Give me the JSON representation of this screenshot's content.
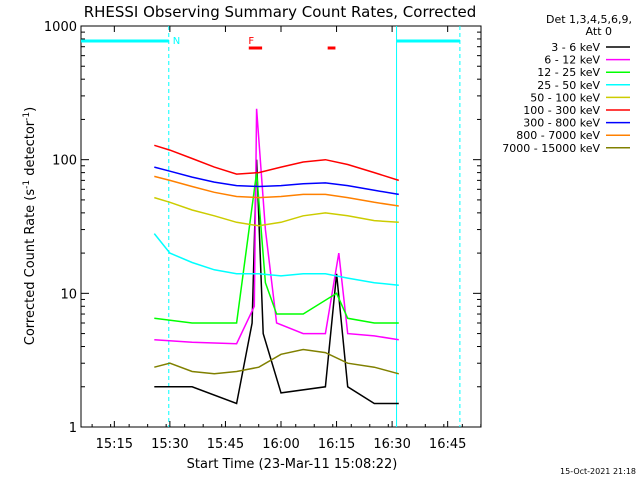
{
  "chart_data": {
    "type": "line",
    "title": "RHESSI Observing Summary Count Rates, Corrected",
    "xlabel": "Start Time (23-Mar-11 15:08:22)",
    "ylabel": "Corrected Count Rate (s⁻¹ detector⁻¹)",
    "ylabel_main": "Corrected Count Rate (s",
    "ylabel_sup1": "-1",
    "ylabel_mid": " detector",
    "ylabel_sup2": "-1",
    "ylabel_end": ")",
    "yscale": "log",
    "ylim": [
      1,
      1000
    ],
    "xlim_minutes": [
      15.1,
      16.9
    ],
    "x_ticks": [
      {
        "v": 15.25,
        "label": "15:15"
      },
      {
        "v": 15.5,
        "label": "15:30"
      },
      {
        "v": 15.75,
        "label": "15:45"
      },
      {
        "v": 16.0,
        "label": "16:00"
      },
      {
        "v": 16.25,
        "label": "16:15"
      },
      {
        "v": 16.5,
        "label": "16:30"
      },
      {
        "v": 16.75,
        "label": "16:45"
      }
    ],
    "y_ticks": [
      {
        "v": 1,
        "label": "1"
      },
      {
        "v": 10,
        "label": "10"
      },
      {
        "v": 100,
        "label": "100"
      },
      {
        "v": 1000,
        "label": "1000"
      }
    ],
    "legend_header_1": "Det 1,3,4,5,6,9,",
    "legend_header_2": "Att 0",
    "legend_placement": "right",
    "series": [
      {
        "name": "3 - 6 keV",
        "color": "#000000",
        "values": [
          [
            15.43,
            2.0
          ],
          [
            15.6,
            2.0
          ],
          [
            15.8,
            1.5
          ],
          [
            15.87,
            6.0
          ],
          [
            15.89,
            100
          ],
          [
            15.92,
            5.0
          ],
          [
            16.0,
            1.8
          ],
          [
            16.2,
            2.0
          ],
          [
            16.25,
            14.0
          ],
          [
            16.3,
            2.0
          ],
          [
            16.42,
            1.5
          ],
          [
            16.53,
            1.5
          ]
        ]
      },
      {
        "name": "6 - 12 keV",
        "color": "#ff00ff",
        "values": [
          [
            15.43,
            4.5
          ],
          [
            15.6,
            4.3
          ],
          [
            15.8,
            4.2
          ],
          [
            15.88,
            8.0
          ],
          [
            15.89,
            240
          ],
          [
            15.93,
            30
          ],
          [
            15.98,
            6.0
          ],
          [
            16.1,
            5.0
          ],
          [
            16.2,
            5.0
          ],
          [
            16.26,
            20
          ],
          [
            16.3,
            5.0
          ],
          [
            16.42,
            4.8
          ],
          [
            16.53,
            4.5
          ]
        ]
      },
      {
        "name": "12 - 25 keV",
        "color": "#00ff00",
        "values": [
          [
            15.43,
            6.5
          ],
          [
            15.6,
            6.0
          ],
          [
            15.8,
            6.0
          ],
          [
            15.89,
            80
          ],
          [
            15.93,
            12
          ],
          [
            15.98,
            7.0
          ],
          [
            16.1,
            7.0
          ],
          [
            16.25,
            10
          ],
          [
            16.3,
            6.5
          ],
          [
            16.42,
            6.0
          ],
          [
            16.53,
            6.0
          ]
        ]
      },
      {
        "name": "25 - 50 keV",
        "color": "#00ffff",
        "values": [
          [
            15.43,
            28
          ],
          [
            15.5,
            20
          ],
          [
            15.6,
            17
          ],
          [
            15.7,
            15
          ],
          [
            15.8,
            14
          ],
          [
            15.9,
            14
          ],
          [
            16.0,
            13.5
          ],
          [
            16.1,
            14
          ],
          [
            16.2,
            14
          ],
          [
            16.3,
            13
          ],
          [
            16.42,
            12
          ],
          [
            16.53,
            11.5
          ]
        ]
      },
      {
        "name": "50 - 100 keV",
        "color": "#cccc00",
        "values": [
          [
            15.43,
            52
          ],
          [
            15.5,
            48
          ],
          [
            15.6,
            42
          ],
          [
            15.7,
            38
          ],
          [
            15.8,
            34
          ],
          [
            15.9,
            32
          ],
          [
            16.0,
            34
          ],
          [
            16.1,
            38
          ],
          [
            16.2,
            40
          ],
          [
            16.3,
            38
          ],
          [
            16.42,
            35
          ],
          [
            16.53,
            34
          ]
        ]
      },
      {
        "name": "100 - 300 keV",
        "color": "#ff0000",
        "values": [
          [
            15.43,
            128
          ],
          [
            15.5,
            118
          ],
          [
            15.6,
            102
          ],
          [
            15.7,
            88
          ],
          [
            15.8,
            78
          ],
          [
            15.9,
            80
          ],
          [
            16.0,
            88
          ],
          [
            16.1,
            96
          ],
          [
            16.2,
            100
          ],
          [
            16.3,
            92
          ],
          [
            16.42,
            80
          ],
          [
            16.53,
            70
          ]
        ]
      },
      {
        "name": "300 - 800 keV",
        "color": "#0000ff",
        "values": [
          [
            15.43,
            88
          ],
          [
            15.5,
            82
          ],
          [
            15.6,
            74
          ],
          [
            15.7,
            68
          ],
          [
            15.8,
            64
          ],
          [
            15.9,
            63
          ],
          [
            16.0,
            64
          ],
          [
            16.1,
            66
          ],
          [
            16.2,
            67
          ],
          [
            16.3,
            64
          ],
          [
            16.42,
            59
          ],
          [
            16.53,
            55
          ]
        ]
      },
      {
        "name": "800 - 7000 keV",
        "color": "#ff8000",
        "values": [
          [
            15.43,
            75
          ],
          [
            15.5,
            70
          ],
          [
            15.6,
            63
          ],
          [
            15.7,
            57
          ],
          [
            15.8,
            53
          ],
          [
            15.9,
            52
          ],
          [
            16.0,
            53
          ],
          [
            16.1,
            55
          ],
          [
            16.2,
            55
          ],
          [
            16.3,
            52
          ],
          [
            16.42,
            48
          ],
          [
            16.53,
            45
          ]
        ]
      },
      {
        "name": "7000 - 15000 keV",
        "color": "#808000",
        "values": [
          [
            15.43,
            2.8
          ],
          [
            15.5,
            3.0
          ],
          [
            15.6,
            2.6
          ],
          [
            15.7,
            2.5
          ],
          [
            15.8,
            2.6
          ],
          [
            15.9,
            2.8
          ],
          [
            16.0,
            3.5
          ],
          [
            16.1,
            3.8
          ],
          [
            16.2,
            3.6
          ],
          [
            16.3,
            3.0
          ],
          [
            16.42,
            2.8
          ],
          [
            16.53,
            2.5
          ]
        ]
      }
    ],
    "annotations": [
      {
        "text": "N",
        "x": 15.495,
        "color": "#00ffff"
      },
      {
        "text": "F",
        "x": 15.835,
        "color": "#ff0000"
      }
    ],
    "night_bars": [
      [
        15.1,
        15.495
      ],
      [
        16.52,
        16.805
      ]
    ],
    "flare_bars": [
      [
        15.855,
        15.915
      ],
      [
        16.21,
        16.245
      ]
    ],
    "vlines_dashed": [
      15.495,
      16.805
    ],
    "vlines_solid": [
      16.52
    ]
  },
  "footer": {
    "timestamp": "15-Oct-2021 21:18"
  }
}
